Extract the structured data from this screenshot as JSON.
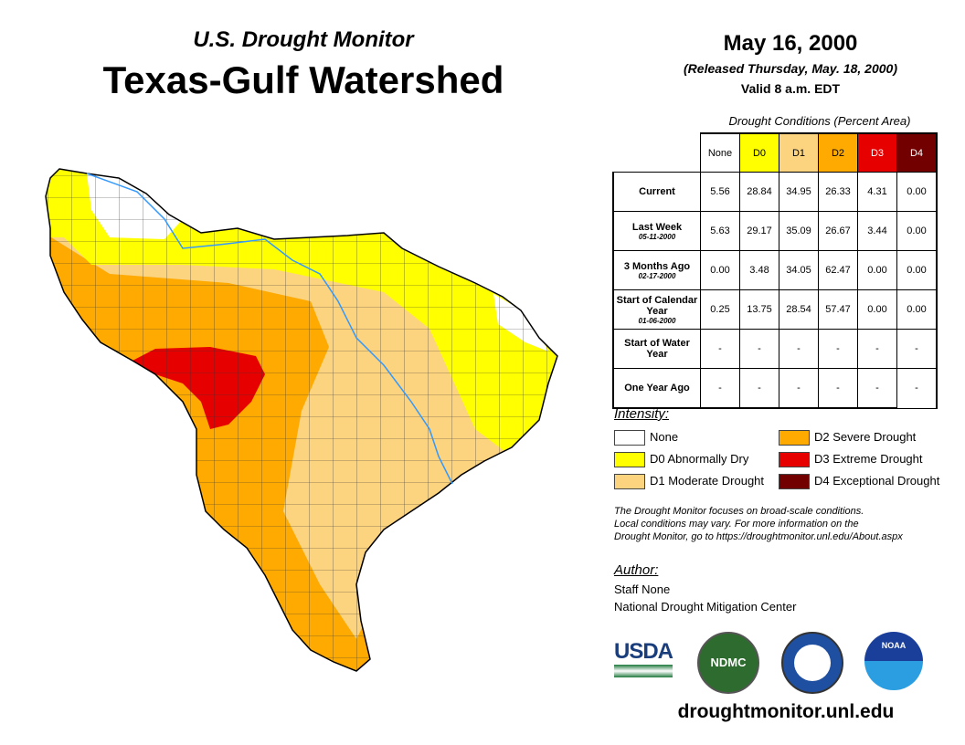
{
  "header": {
    "subtitle": "U.S. Drought Monitor",
    "title": "Texas-Gulf Watershed",
    "date": "May 16, 2000",
    "released": "(Released Thursday, May. 18, 2000)",
    "valid": "Valid 8 a.m. EDT"
  },
  "table": {
    "caption": "Drought Conditions (Percent Area)",
    "columns": [
      "None",
      "D0",
      "D1",
      "D2",
      "D3",
      "D4"
    ],
    "column_colors": [
      "#ffffff",
      "#ffff00",
      "#fcd37f",
      "#ffaa00",
      "#e60000",
      "#730000"
    ],
    "rows": [
      {
        "label": "Current",
        "date": "",
        "values": [
          "5.56",
          "28.84",
          "34.95",
          "26.33",
          "4.31",
          "0.00"
        ]
      },
      {
        "label": "Last Week",
        "date": "05-11-2000",
        "values": [
          "5.63",
          "29.17",
          "35.09",
          "26.67",
          "3.44",
          "0.00"
        ]
      },
      {
        "label": "3 Months Ago",
        "date": "02-17-2000",
        "values": [
          "0.00",
          "3.48",
          "34.05",
          "62.47",
          "0.00",
          "0.00"
        ]
      },
      {
        "label": "Start of Calendar Year",
        "date": "01-06-2000",
        "values": [
          "0.25",
          "13.75",
          "28.54",
          "57.47",
          "0.00",
          "0.00"
        ]
      },
      {
        "label": "Start of Water Year",
        "date": "",
        "values": [
          "-",
          "-",
          "-",
          "-",
          "-",
          "-"
        ]
      },
      {
        "label": "One Year Ago",
        "date": "",
        "values": [
          "-",
          "-",
          "-",
          "-",
          "-",
          "-"
        ]
      }
    ]
  },
  "legend": {
    "title": "Intensity:",
    "items": [
      {
        "label": "None",
        "color": "#ffffff"
      },
      {
        "label": "D0 Abnormally Dry",
        "color": "#ffff00"
      },
      {
        "label": "D1 Moderate Drought",
        "color": "#fcd37f"
      },
      {
        "label": "D2 Severe Drought",
        "color": "#ffaa00"
      },
      {
        "label": "D3 Extreme Drought",
        "color": "#e60000"
      },
      {
        "label": "D4 Exceptional Drought",
        "color": "#730000"
      }
    ]
  },
  "note": [
    "The Drought Monitor focuses on broad-scale conditions.",
    "Local conditions may vary. For more information on the",
    "Drought Monitor, go to https://droughtmonitor.unl.edu/About.aspx"
  ],
  "author": {
    "title": "Author:",
    "name": "Staff None",
    "org": "National Drought Mitigation Center"
  },
  "logos": {
    "usda": "USDA",
    "ndmc": "NDMC",
    "noaa": "NOAA"
  },
  "url": "droughtmonitor.unl.edu"
}
